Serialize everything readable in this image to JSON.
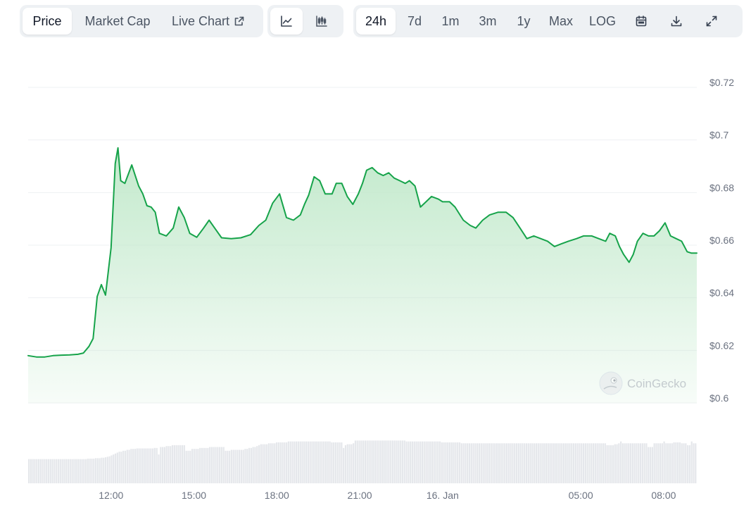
{
  "toolbar": {
    "view_tabs": [
      "Price",
      "Market Cap",
      "Live Chart"
    ],
    "active_view": "Price",
    "chart_types": [
      "line-chart-icon",
      "candlestick-chart-icon"
    ],
    "active_chart_type": "line-chart-icon",
    "ranges": [
      "24h",
      "7d",
      "1m",
      "3m",
      "1y",
      "Max",
      "LOG"
    ],
    "active_range": "24h",
    "actions": [
      "calendar-icon",
      "download-icon",
      "expand-icon"
    ]
  },
  "watermark": "CoinGecko",
  "colors": {
    "line": "#16a34a",
    "fill_top": "#bfe8c9",
    "volume": "#e5e7eb",
    "grid": "#eef0f3",
    "axis_text": "#6b7280"
  },
  "chart_data": {
    "type": "area",
    "title": "",
    "xlabel": "",
    "ylabel": "",
    "ylim": [
      0.6,
      0.72
    ],
    "y_ticks": [
      {
        "value": 0.72,
        "label": "$0.72"
      },
      {
        "value": 0.7,
        "label": "$0.7"
      },
      {
        "value": 0.68,
        "label": "$0.68"
      },
      {
        "value": 0.66,
        "label": "$0.66"
      },
      {
        "value": 0.64,
        "label": "$0.64"
      },
      {
        "value": 0.62,
        "label": "$0.62"
      },
      {
        "value": 0.6,
        "label": "$0.6"
      }
    ],
    "x_range_hours": [
      9.0,
      33.2
    ],
    "x_ticks": [
      {
        "hour": 12,
        "label": "12:00"
      },
      {
        "hour": 15,
        "label": "15:00"
      },
      {
        "hour": 18,
        "label": "18:00"
      },
      {
        "hour": 21,
        "label": "21:00"
      },
      {
        "hour": 24,
        "label": "16. Jan"
      },
      {
        "hour": 29,
        "label": "05:00"
      },
      {
        "hour": 32,
        "label": "08:00"
      }
    ],
    "grid": true,
    "series": [
      {
        "points": [
          [
            9.0,
            0.618
          ],
          [
            9.3,
            0.6175
          ],
          [
            9.6,
            0.6175
          ],
          [
            9.9,
            0.618
          ],
          [
            10.2,
            0.6182
          ],
          [
            10.5,
            0.6183
          ],
          [
            10.8,
            0.6185
          ],
          [
            11.0,
            0.619
          ],
          [
            11.2,
            0.6215
          ],
          [
            11.35,
            0.6245
          ],
          [
            11.5,
            0.6405
          ],
          [
            11.65,
            0.645
          ],
          [
            11.8,
            0.641
          ],
          [
            12.0,
            0.659
          ],
          [
            12.15,
            0.691
          ],
          [
            12.25,
            0.697
          ],
          [
            12.35,
            0.6845
          ],
          [
            12.5,
            0.6835
          ],
          [
            12.75,
            0.6905
          ],
          [
            13.0,
            0.6825
          ],
          [
            13.15,
            0.6795
          ],
          [
            13.3,
            0.675
          ],
          [
            13.45,
            0.6745
          ],
          [
            13.6,
            0.6725
          ],
          [
            13.75,
            0.6645
          ],
          [
            14.0,
            0.6635
          ],
          [
            14.25,
            0.6665
          ],
          [
            14.45,
            0.6745
          ],
          [
            14.65,
            0.6705
          ],
          [
            14.85,
            0.6645
          ],
          [
            15.1,
            0.663
          ],
          [
            15.35,
            0.6665
          ],
          [
            15.55,
            0.6695
          ],
          [
            15.75,
            0.6665
          ],
          [
            16.0,
            0.6628
          ],
          [
            16.35,
            0.6625
          ],
          [
            16.7,
            0.6628
          ],
          [
            17.05,
            0.664
          ],
          [
            17.35,
            0.6675
          ],
          [
            17.6,
            0.6695
          ],
          [
            17.85,
            0.676
          ],
          [
            18.1,
            0.6795
          ],
          [
            18.35,
            0.6705
          ],
          [
            18.6,
            0.6695
          ],
          [
            18.85,
            0.6715
          ],
          [
            19.0,
            0.6755
          ],
          [
            19.15,
            0.679
          ],
          [
            19.35,
            0.686
          ],
          [
            19.55,
            0.6845
          ],
          [
            19.75,
            0.6795
          ],
          [
            20.0,
            0.6795
          ],
          [
            20.15,
            0.6835
          ],
          [
            20.35,
            0.6835
          ],
          [
            20.55,
            0.6785
          ],
          [
            20.75,
            0.6755
          ],
          [
            20.95,
            0.6795
          ],
          [
            21.1,
            0.6835
          ],
          [
            21.25,
            0.6885
          ],
          [
            21.45,
            0.6895
          ],
          [
            21.65,
            0.6875
          ],
          [
            21.85,
            0.6865
          ],
          [
            22.05,
            0.6875
          ],
          [
            22.25,
            0.6855
          ],
          [
            22.45,
            0.6845
          ],
          [
            22.65,
            0.6835
          ],
          [
            22.8,
            0.6845
          ],
          [
            23.0,
            0.6825
          ],
          [
            23.2,
            0.6745
          ],
          [
            23.4,
            0.6765
          ],
          [
            23.6,
            0.6785
          ],
          [
            23.85,
            0.6775
          ],
          [
            24.0,
            0.6765
          ],
          [
            24.25,
            0.6765
          ],
          [
            24.45,
            0.6745
          ],
          [
            24.75,
            0.6695
          ],
          [
            25.0,
            0.6675
          ],
          [
            25.2,
            0.6665
          ],
          [
            25.45,
            0.6695
          ],
          [
            25.7,
            0.6715
          ],
          [
            26.0,
            0.6725
          ],
          [
            26.3,
            0.6725
          ],
          [
            26.55,
            0.6705
          ],
          [
            26.8,
            0.6665
          ],
          [
            27.05,
            0.6625
          ],
          [
            27.3,
            0.6635
          ],
          [
            27.55,
            0.6625
          ],
          [
            27.8,
            0.6615
          ],
          [
            28.05,
            0.6595
          ],
          [
            28.3,
            0.6605
          ],
          [
            28.55,
            0.6615
          ],
          [
            28.85,
            0.6625
          ],
          [
            29.1,
            0.6635
          ],
          [
            29.4,
            0.6635
          ],
          [
            29.65,
            0.6625
          ],
          [
            29.9,
            0.6615
          ],
          [
            30.05,
            0.6645
          ],
          [
            30.25,
            0.6635
          ],
          [
            30.4,
            0.6595
          ],
          [
            30.55,
            0.6565
          ],
          [
            30.75,
            0.6535
          ],
          [
            30.9,
            0.6565
          ],
          [
            31.05,
            0.6615
          ],
          [
            31.25,
            0.6645
          ],
          [
            31.45,
            0.6635
          ],
          [
            31.65,
            0.6635
          ],
          [
            31.85,
            0.6655
          ],
          [
            32.05,
            0.6685
          ],
          [
            32.25,
            0.6635
          ],
          [
            32.45,
            0.6625
          ],
          [
            32.65,
            0.6615
          ],
          [
            32.85,
            0.6575
          ],
          [
            33.0,
            0.657
          ],
          [
            33.2,
            0.657
          ]
        ]
      }
    ],
    "volume": {
      "bars": [
        0.52,
        0.52,
        0.52,
        0.52,
        0.52,
        0.52,
        0.52,
        0.52,
        0.52,
        0.52,
        0.52,
        0.52,
        0.52,
        0.52,
        0.52,
        0.52,
        0.52,
        0.52,
        0.52,
        0.52,
        0.52,
        0.52,
        0.52,
        0.52,
        0.52,
        0.52,
        0.52,
        0.52,
        0.52,
        0.52,
        0.53,
        0.53,
        0.53,
        0.53,
        0.54,
        0.54,
        0.54,
        0.55,
        0.55,
        0.56,
        0.57,
        0.58,
        0.6,
        0.62,
        0.64,
        0.66,
        0.68,
        0.68,
        0.7,
        0.7,
        0.72,
        0.72,
        0.74,
        0.74,
        0.74,
        0.75,
        0.75,
        0.75,
        0.75,
        0.75,
        0.75,
        0.75,
        0.75,
        0.75,
        0.76,
        0.76,
        0.62,
        0.78,
        0.78,
        0.78,
        0.8,
        0.8,
        0.8,
        0.82,
        0.82,
        0.82,
        0.82,
        0.82,
        0.82,
        0.82,
        0.7,
        0.7,
        0.7,
        0.74,
        0.74,
        0.74,
        0.74,
        0.76,
        0.76,
        0.76,
        0.76,
        0.76,
        0.78,
        0.78,
        0.78,
        0.78,
        0.78,
        0.78,
        0.78,
        0.78,
        0.7,
        0.7,
        0.7,
        0.72,
        0.72,
        0.72,
        0.72,
        0.72,
        0.72,
        0.72,
        0.74,
        0.74,
        0.76,
        0.76,
        0.78,
        0.78,
        0.8,
        0.82,
        0.84,
        0.84,
        0.84,
        0.84,
        0.86,
        0.86,
        0.86,
        0.86,
        0.88,
        0.88,
        0.88,
        0.88,
        0.88,
        0.88,
        0.9,
        0.9,
        0.9,
        0.9,
        0.9,
        0.9,
        0.9,
        0.9,
        0.9,
        0.9,
        0.9,
        0.9,
        0.9,
        0.9,
        0.9,
        0.9,
        0.9,
        0.9,
        0.9,
        0.9,
        0.9,
        0.9,
        0.88,
        0.88,
        0.88,
        0.88,
        0.88,
        0.88,
        0.76,
        0.82,
        0.84,
        0.84,
        0.84,
        0.86,
        0.92,
        0.92,
        0.92,
        0.92,
        0.92,
        0.92,
        0.92,
        0.92,
        0.92,
        0.92,
        0.92,
        0.92,
        0.92,
        0.92,
        0.92,
        0.92,
        0.92,
        0.92,
        0.92,
        0.92,
        0.92,
        0.92,
        0.92,
        0.92,
        0.92,
        0.92,
        0.9,
        0.9,
        0.9,
        0.9,
        0.9,
        0.9,
        0.9,
        0.9,
        0.9,
        0.9,
        0.9,
        0.9,
        0.9,
        0.9,
        0.9,
        0.9,
        0.9,
        0.9,
        0.88,
        0.88,
        0.88,
        0.88,
        0.88,
        0.88,
        0.88,
        0.88,
        0.88,
        0.88,
        0.86,
        0.86,
        0.86,
        0.86,
        0.86,
        0.86,
        0.86,
        0.86,
        0.86,
        0.86,
        0.86,
        0.86,
        0.86,
        0.86,
        0.86,
        0.86,
        0.86,
        0.86,
        0.86,
        0.86,
        0.86,
        0.86,
        0.86,
        0.86,
        0.86,
        0.86,
        0.86,
        0.86,
        0.86,
        0.86,
        0.86,
        0.86,
        0.86,
        0.86,
        0.86,
        0.86,
        0.86,
        0.86,
        0.86,
        0.86,
        0.86,
        0.86,
        0.86,
        0.86,
        0.86,
        0.86,
        0.86,
        0.86,
        0.86,
        0.86,
        0.86,
        0.86,
        0.86,
        0.86,
        0.86,
        0.86,
        0.86,
        0.86,
        0.86,
        0.86,
        0.86,
        0.86,
        0.86,
        0.86,
        0.86,
        0.86,
        0.86,
        0.86,
        0.86,
        0.86,
        0.86,
        0.86,
        0.86,
        0.86,
        0.82,
        0.82,
        0.82,
        0.82,
        0.84,
        0.84,
        0.86,
        0.9,
        0.86,
        0.86,
        0.86,
        0.86,
        0.86,
        0.86,
        0.86,
        0.86,
        0.86,
        0.86,
        0.86,
        0.86,
        0.86,
        0.78,
        0.78,
        0.78,
        0.86,
        0.86,
        0.86,
        0.86,
        0.86,
        0.9,
        0.86,
        0.86,
        0.86,
        0.86,
        0.88,
        0.88,
        0.88,
        0.88,
        0.86,
        0.86,
        0.86,
        0.82,
        0.82,
        0.9,
        0.86,
        0.86
      ]
    }
  }
}
